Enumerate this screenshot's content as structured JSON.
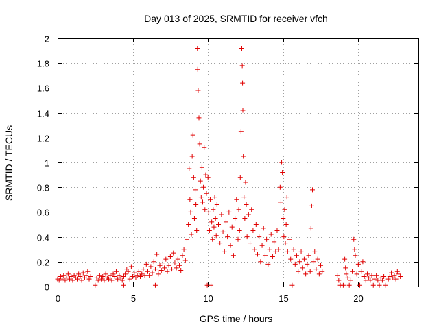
{
  "chart_data": {
    "type": "scatter",
    "title": "Day 013 of 2025, SRMTID for receiver vfch",
    "xlabel": "GPS time / hours",
    "ylabel": "SRMTID / TECUs",
    "xlim": [
      0,
      24
    ],
    "ylim": [
      0,
      2
    ],
    "xticks": [
      0,
      5,
      10,
      15,
      20
    ],
    "yticks": [
      0,
      0.2,
      0.4,
      0.6,
      0.8,
      1,
      1.2,
      1.4,
      1.6,
      1.8,
      2
    ],
    "xtick_labels": [
      "0",
      "5",
      "10",
      "15",
      "20"
    ],
    "ytick_labels": [
      "0",
      "0.2",
      "0.4",
      "0.6",
      "0.8",
      "1",
      "1.2",
      "1.4",
      "1.6",
      "1.8",
      "2"
    ],
    "grid": true,
    "marker": "plus",
    "color": "#e00000",
    "series": [
      {
        "name": "SRMTID",
        "points": [
          [
            0.0,
            0.06
          ],
          [
            0.1,
            0.05
          ],
          [
            0.2,
            0.08
          ],
          [
            0.3,
            0.06
          ],
          [
            0.4,
            0.09
          ],
          [
            0.5,
            0.05
          ],
          [
            0.6,
            0.07
          ],
          [
            0.7,
            0.1
          ],
          [
            0.8,
            0.06
          ],
          [
            0.9,
            0.08
          ],
          [
            1.0,
            0.05
          ],
          [
            1.1,
            0.09
          ],
          [
            1.2,
            0.07
          ],
          [
            1.3,
            0.06
          ],
          [
            1.4,
            0.1
          ],
          [
            1.5,
            0.08
          ],
          [
            1.6,
            0.05
          ],
          [
            1.7,
            0.11
          ],
          [
            1.8,
            0.07
          ],
          [
            1.9,
            0.09
          ],
          [
            2.0,
            0.12
          ],
          [
            2.1,
            0.06
          ],
          [
            2.2,
            0.08
          ],
          [
            2.6,
            0.07
          ],
          [
            2.7,
            0.05
          ],
          [
            2.8,
            0.09
          ],
          [
            2.9,
            0.06
          ],
          [
            3.0,
            0.08
          ],
          [
            3.1,
            0.05
          ],
          [
            3.2,
            0.1
          ],
          [
            3.3,
            0.07
          ],
          [
            3.4,
            0.06
          ],
          [
            3.5,
            0.09
          ],
          [
            3.6,
            0.05
          ],
          [
            3.7,
            0.1
          ],
          [
            3.8,
            0.08
          ],
          [
            3.9,
            0.12
          ],
          [
            4.0,
            0.06
          ],
          [
            4.1,
            0.09
          ],
          [
            4.2,
            0.07
          ],
          [
            4.3,
            0.05
          ],
          [
            4.4,
            0.08
          ],
          [
            4.5,
            0.1
          ],
          [
            4.6,
            0.14
          ],
          [
            4.7,
            0.12
          ],
          [
            4.8,
            0.06
          ],
          [
            4.9,
            0.16
          ],
          [
            5.0,
            0.08
          ],
          [
            5.1,
            0.11
          ],
          [
            5.2,
            0.07
          ],
          [
            5.3,
            0.09
          ],
          [
            5.4,
            0.12
          ],
          [
            5.5,
            0.08
          ],
          [
            5.6,
            0.1
          ],
          [
            5.7,
            0.14
          ],
          [
            5.8,
            0.09
          ],
          [
            5.9,
            0.18
          ],
          [
            6.0,
            0.12
          ],
          [
            6.1,
            0.09
          ],
          [
            6.2,
            0.16
          ],
          [
            6.3,
            0.11
          ],
          [
            6.4,
            0.2
          ],
          [
            6.5,
            0.14
          ],
          [
            6.6,
            0.26
          ],
          [
            6.7,
            0.1
          ],
          [
            6.8,
            0.17
          ],
          [
            6.9,
            0.13
          ],
          [
            7.0,
            0.19
          ],
          [
            7.1,
            0.15
          ],
          [
            7.2,
            0.22
          ],
          [
            7.3,
            0.12
          ],
          [
            7.4,
            0.17
          ],
          [
            7.5,
            0.24
          ],
          [
            7.6,
            0.14
          ],
          [
            7.7,
            0.27
          ],
          [
            7.8,
            0.19
          ],
          [
            7.9,
            0.15
          ],
          [
            8.0,
            0.22
          ],
          [
            8.1,
            0.17
          ],
          [
            8.2,
            0.13
          ],
          [
            8.3,
            0.25
          ],
          [
            8.4,
            0.3
          ],
          [
            8.5,
            0.21
          ],
          [
            8.6,
            0.38
          ],
          [
            8.7,
            0.5
          ],
          [
            8.75,
            0.95
          ],
          [
            8.8,
            0.7
          ],
          [
            8.85,
            0.6
          ],
          [
            8.9,
            0.42
          ],
          [
            8.95,
            1.05
          ],
          [
            9.0,
            1.22
          ],
          [
            9.05,
            0.88
          ],
          [
            9.1,
            0.55
          ],
          [
            9.15,
            0.78
          ],
          [
            9.2,
            0.66
          ],
          [
            9.25,
            0.45
          ],
          [
            9.3,
            1.92
          ],
          [
            9.32,
            1.75
          ],
          [
            9.35,
            1.58
          ],
          [
            9.4,
            1.36
          ],
          [
            9.45,
            1.15
          ],
          [
            9.5,
            0.85
          ],
          [
            9.55,
            0.72
          ],
          [
            9.6,
            0.96
          ],
          [
            9.65,
            0.68
          ],
          [
            9.7,
            0.8
          ],
          [
            9.75,
            1.12
          ],
          [
            9.8,
            0.62
          ],
          [
            9.85,
            0.9
          ],
          [
            9.9,
            0.75
          ],
          [
            9.95,
            0.01
          ],
          [
            10.0,
            0.88
          ],
          [
            10.05,
            0.6
          ],
          [
            10.1,
            0.45
          ],
          [
            10.15,
            0.7
          ],
          [
            10.2,
            0.01
          ],
          [
            10.25,
            0.52
          ],
          [
            10.3,
            0.38
          ],
          [
            10.35,
            0.62
          ],
          [
            10.4,
            0.48
          ],
          [
            10.45,
            0.72
          ],
          [
            10.5,
            0.55
          ],
          [
            10.55,
            0.41
          ],
          [
            10.6,
            0.66
          ],
          [
            10.7,
            0.5
          ],
          [
            10.8,
            0.35
          ],
          [
            10.9,
            0.58
          ],
          [
            11.0,
            0.44
          ],
          [
            11.1,
            0.28
          ],
          [
            11.2,
            0.52
          ],
          [
            11.3,
            0.4
          ],
          [
            11.4,
            0.6
          ],
          [
            11.5,
            0.33
          ],
          [
            11.6,
            0.48
          ],
          [
            11.7,
            0.25
          ],
          [
            11.8,
            0.55
          ],
          [
            11.9,
            0.7
          ],
          [
            12.0,
            0.38
          ],
          [
            12.05,
            0.62
          ],
          [
            12.1,
            0.45
          ],
          [
            12.15,
            0.88
          ],
          [
            12.2,
            1.25
          ],
          [
            12.25,
            1.92
          ],
          [
            12.28,
            1.78
          ],
          [
            12.3,
            1.64
          ],
          [
            12.32,
            1.42
          ],
          [
            12.35,
            1.05
          ],
          [
            12.4,
            0.72
          ],
          [
            12.45,
            0.55
          ],
          [
            12.5,
            0.84
          ],
          [
            12.55,
            0.66
          ],
          [
            12.6,
            0.4
          ],
          [
            12.7,
            0.58
          ],
          [
            12.8,
            0.35
          ],
          [
            12.9,
            0.62
          ],
          [
            13.0,
            0.45
          ],
          [
            13.1,
            0.3
          ],
          [
            13.2,
            0.5
          ],
          [
            13.3,
            0.26
          ],
          [
            13.4,
            0.4
          ],
          [
            13.5,
            0.2
          ],
          [
            13.6,
            0.33
          ],
          [
            13.7,
            0.47
          ],
          [
            13.8,
            0.25
          ],
          [
            13.9,
            0.38
          ],
          [
            14.0,
            0.18
          ],
          [
            14.1,
            0.3
          ],
          [
            14.2,
            0.42
          ],
          [
            14.3,
            0.24
          ],
          [
            14.4,
            0.36
          ],
          [
            14.5,
            0.28
          ],
          [
            14.6,
            0.45
          ],
          [
            14.7,
            0.3
          ],
          [
            14.8,
            0.8
          ],
          [
            14.85,
            0.68
          ],
          [
            14.9,
            1.0
          ],
          [
            14.95,
            0.92
          ],
          [
            15.0,
            0.55
          ],
          [
            15.05,
            0.4
          ],
          [
            15.1,
            0.62
          ],
          [
            15.15,
            0.35
          ],
          [
            15.2,
            0.5
          ],
          [
            15.25,
            0.72
          ],
          [
            15.3,
            0.28
          ],
          [
            15.4,
            0.38
          ],
          [
            15.5,
            0.22
          ],
          [
            15.6,
            0.01
          ],
          [
            15.7,
            0.3
          ],
          [
            15.8,
            0.18
          ],
          [
            15.9,
            0.25
          ],
          [
            16.0,
            0.12
          ],
          [
            16.1,
            0.2
          ],
          [
            16.2,
            0.28
          ],
          [
            16.3,
            0.15
          ],
          [
            16.4,
            0.22
          ],
          [
            16.5,
            0.1
          ],
          [
            16.6,
            0.18
          ],
          [
            16.7,
            0.25
          ],
          [
            16.8,
            0.12
          ],
          [
            16.85,
            0.47
          ],
          [
            16.9,
            0.65
          ],
          [
            16.95,
            0.78
          ],
          [
            17.0,
            0.2
          ],
          [
            17.1,
            0.28
          ],
          [
            17.2,
            0.14
          ],
          [
            17.3,
            0.22
          ],
          [
            17.4,
            0.1
          ],
          [
            17.5,
            0.17
          ],
          [
            17.6,
            0.12
          ],
          [
            18.6,
            0.09
          ],
          [
            18.7,
            0.05
          ],
          [
            18.8,
            0.01
          ],
          [
            19.0,
            0.01
          ],
          [
            19.1,
            0.22
          ],
          [
            19.15,
            0.15
          ],
          [
            19.2,
            0.1
          ],
          [
            19.3,
            0.07
          ],
          [
            19.4,
            0.01
          ],
          [
            19.5,
            0.05
          ],
          [
            19.6,
            0.12
          ],
          [
            19.7,
            0.38
          ],
          [
            19.75,
            0.3
          ],
          [
            19.8,
            0.25
          ],
          [
            19.9,
            0.1
          ],
          [
            20.0,
            0.18
          ],
          [
            20.1,
            0.01
          ],
          [
            20.2,
            0.12
          ],
          [
            20.3,
            0.2
          ],
          [
            20.4,
            0.08
          ],
          [
            20.5,
            0.05
          ],
          [
            20.6,
            0.1
          ],
          [
            20.7,
            0.07
          ],
          [
            20.8,
            0.05
          ],
          [
            20.9,
            0.09
          ],
          [
            21.0,
            0.01
          ],
          [
            21.1,
            0.06
          ],
          [
            21.2,
            0.09
          ],
          [
            21.3,
            0.05
          ],
          [
            21.4,
            0.01
          ],
          [
            21.5,
            0.07
          ],
          [
            21.6,
            0.05
          ],
          [
            21.7,
            0.08
          ],
          [
            21.8,
            0.01
          ],
          [
            22.0,
            0.06
          ],
          [
            22.1,
            0.08
          ],
          [
            22.2,
            0.11
          ],
          [
            22.3,
            0.07
          ],
          [
            22.4,
            0.09
          ],
          [
            22.5,
            0.06
          ],
          [
            22.6,
            0.12
          ],
          [
            22.7,
            0.1
          ],
          [
            22.8,
            0.08
          ],
          [
            2.5,
            0.01
          ],
          [
            6.5,
            0.01
          ],
          [
            4.4,
            0.01
          ]
        ]
      }
    ]
  }
}
